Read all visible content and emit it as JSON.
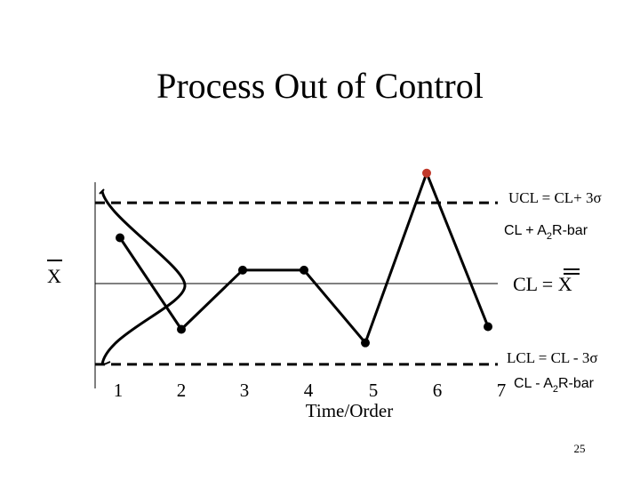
{
  "slide": {
    "title": "Process Out of Control",
    "page_number": "25"
  },
  "labels": {
    "ucl": "UCL = CL+ 3",
    "sigma": "σ",
    "ucl_r_prefix": "CL + A",
    "ucl_r_sub": "2",
    "ucl_r_suffix": "R-bar",
    "cl": "CL = X",
    "xbar_left": "X",
    "lcl": "LCL = CL - 3",
    "lcl_r_prefix": "CL - A",
    "lcl_r_sub": "2",
    "lcl_r_suffix": "R-bar"
  },
  "colors": {
    "line": "#000000",
    "out_of_control_point": "#c0392b"
  },
  "chart_data": {
    "type": "line",
    "title": "Process Out of Control",
    "xlabel": "Time/Order",
    "ylabel": "",
    "categories": [
      "1",
      "2",
      "3",
      "4",
      "5",
      "6",
      "7"
    ],
    "ylim": [
      -3.3,
      4.5
    ],
    "control_limits": {
      "ucl": 3,
      "cl": 0,
      "lcl": -3
    },
    "points": [
      {
        "x": 1.0,
        "y": 1.7
      },
      {
        "x": 2.0,
        "y": -1.7
      },
      {
        "x": 3.0,
        "y": 0.5
      },
      {
        "x": 4.0,
        "y": 0.5
      },
      {
        "x": 5.0,
        "y": -2.2
      },
      {
        "x": 6.0,
        "y": 4.1,
        "out_of_control": true
      },
      {
        "x": 7.0,
        "y": -1.6
      }
    ]
  }
}
